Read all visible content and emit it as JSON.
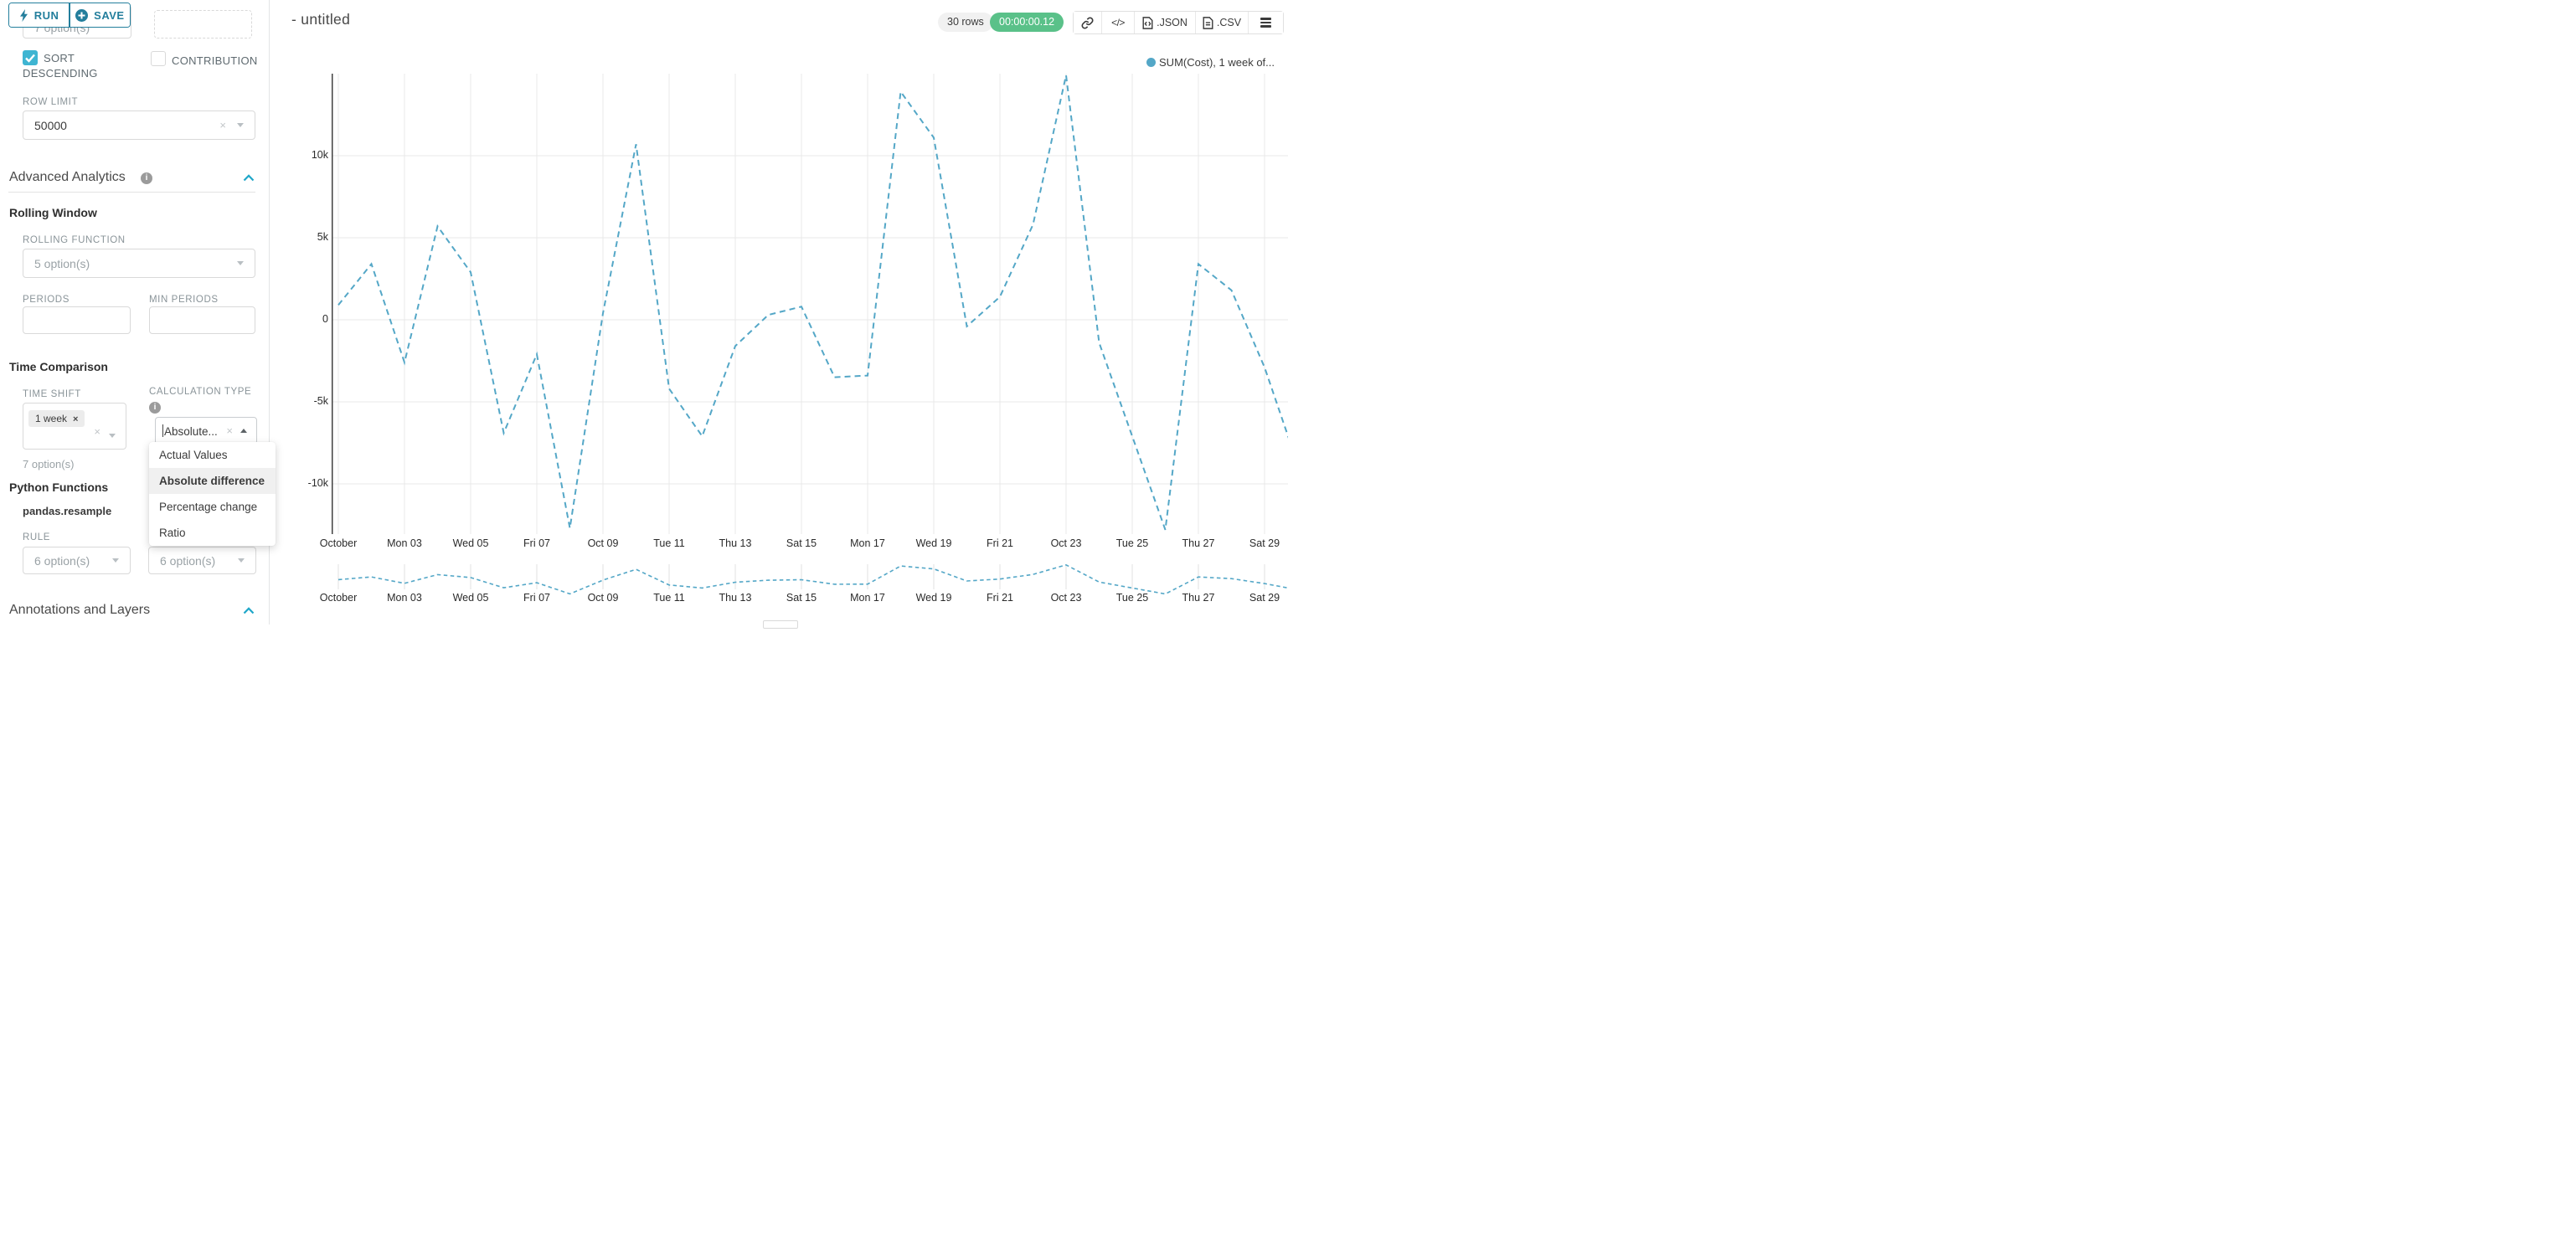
{
  "actions": {
    "run": "RUN",
    "save": "SAVE"
  },
  "header": {
    "title": "- untitled",
    "rows_badge": "30 rows",
    "timer_badge": "00:00:00.12",
    "export_json": ".JSON",
    "export_csv": ".CSV"
  },
  "sidebar": {
    "hidden_select_value": "7 option(s)",
    "sort_descending": {
      "line1": "SORT",
      "line2": "DESCENDING",
      "checked": true
    },
    "contribution": {
      "label": "CONTRIBUTION",
      "checked": false
    },
    "row_limit": {
      "label": "ROW LIMIT",
      "value": "50000"
    },
    "advanced": {
      "title": "Advanced Analytics"
    },
    "rolling": {
      "heading": "Rolling Window",
      "function_label": "ROLLING FUNCTION",
      "function_value": "5 option(s)",
      "periods_label": "PERIODS",
      "min_periods_label": "MIN PERIODS"
    },
    "time_comparison": {
      "heading": "Time Comparison",
      "time_shift_label": "TIME SHIFT",
      "time_shift_tag": "1 week",
      "time_shift_hint": "7 option(s)",
      "calc_label": "CALCULATION TYPE",
      "calc_value": "Absolute...",
      "options": [
        "Actual Values",
        "Absolute difference",
        "Percentage change",
        "Ratio"
      ],
      "selected_option": "Absolute difference"
    },
    "python": {
      "heading": "Python Functions",
      "function_name": "pandas.resample",
      "rule_label": "RULE",
      "rule_value": "6 option(s)",
      "second_value": "6 option(s)"
    },
    "annotations": {
      "heading": "Annotations and Layers"
    }
  },
  "chart_data": {
    "type": "line",
    "title": "- untitled",
    "line_style": "dashed",
    "legend": [
      {
        "label": "SUM(Cost), 1 week of...",
        "color": "#54a7c7"
      }
    ],
    "legend_position": "top-right",
    "grid": true,
    "x": [
      "Oct 01",
      "Oct 02",
      "Oct 03",
      "Oct 04",
      "Oct 05",
      "Oct 06",
      "Oct 07",
      "Oct 08",
      "Oct 09",
      "Oct 10",
      "Oct 11",
      "Oct 12",
      "Oct 13",
      "Oct 14",
      "Oct 15",
      "Oct 16",
      "Oct 17",
      "Oct 18",
      "Oct 19",
      "Oct 20",
      "Oct 21",
      "Oct 22",
      "Oct 23",
      "Oct 24",
      "Oct 25",
      "Oct 26",
      "Oct 27",
      "Oct 28",
      "Oct 29",
      "Oct 30"
    ],
    "values": [
      900,
      3400,
      -2600,
      5700,
      2900,
      -6900,
      -2100,
      -12700,
      400,
      10700,
      -4200,
      -7100,
      -1600,
      300,
      800,
      -3500,
      -3400,
      13900,
      11100,
      -400,
      1400,
      5800,
      14900,
      -1400,
      -7100,
      -12800,
      3400,
      1800,
      -2900,
      -8800
    ],
    "x_tick_labels": [
      "October",
      "Mon 03",
      "Wed 05",
      "Fri 07",
      "Oct 09",
      "Tue 11",
      "Thu 13",
      "Sat 15",
      "Mon 17",
      "Wed 19",
      "Fri 21",
      "Oct 23",
      "Tue 25",
      "Thu 27",
      "Sat 29"
    ],
    "y_tick_labels": [
      "10k",
      "5k",
      "0",
      "-5k",
      "-10k"
    ],
    "y_tick_values": [
      10000,
      5000,
      0,
      -5000,
      -10000
    ],
    "ylim": [
      -13100,
      15100
    ],
    "has_minimap": true,
    "colors": {
      "line": "#54a7c7",
      "grid": "#e8e8e8",
      "axis": "#404040"
    }
  }
}
